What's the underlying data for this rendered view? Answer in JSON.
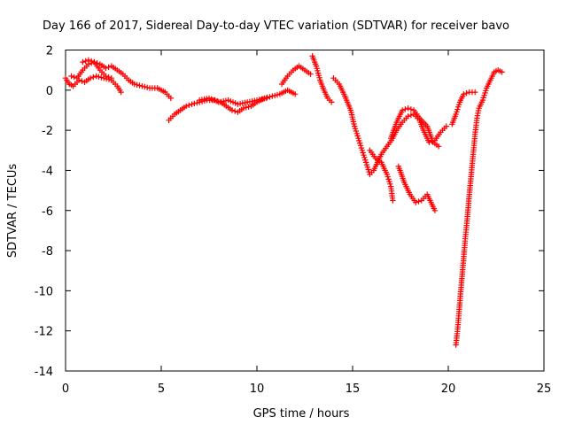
{
  "chart_data": {
    "type": "scatter",
    "title": "Day 166 of 2017, Sidereal Day-to-day VTEC variation (SDTVAR) for receiver bavo",
    "xlabel": "GPS time / hours",
    "ylabel": "SDTVAR / TECUs",
    "xlim": [
      0,
      25
    ],
    "ylim": [
      -14,
      2
    ],
    "xticks": [
      0,
      5,
      10,
      15,
      20,
      25
    ],
    "yticks": [
      2,
      0,
      -2,
      -4,
      -6,
      -8,
      -10,
      -12,
      -14
    ],
    "grid": false,
    "legend": "none",
    "marker": "+",
    "color": "#ff0000",
    "segments": [
      {
        "points": [
          [
            0.0,
            0.6
          ],
          [
            0.2,
            0.3
          ],
          [
            0.4,
            0.2
          ],
          [
            0.7,
            0.5
          ],
          [
            1.0,
            0.4
          ],
          [
            1.3,
            0.6
          ],
          [
            1.6,
            0.7
          ],
          [
            2.0,
            0.6
          ],
          [
            2.4,
            0.5
          ],
          [
            2.7,
            0.2
          ],
          [
            2.9,
            -0.1
          ]
        ]
      },
      {
        "points": [
          [
            0.3,
            0.7
          ],
          [
            0.6,
            0.6
          ],
          [
            0.9,
            1.0
          ],
          [
            1.2,
            1.3
          ],
          [
            1.5,
            1.4
          ],
          [
            1.8,
            1.3
          ],
          [
            2.1,
            1.1
          ],
          [
            2.4,
            1.2
          ],
          [
            2.7,
            1.0
          ],
          [
            3.0,
            0.8
          ],
          [
            3.3,
            0.5
          ],
          [
            3.6,
            0.3
          ],
          [
            4.0,
            0.2
          ],
          [
            4.4,
            0.1
          ],
          [
            4.8,
            0.1
          ],
          [
            5.2,
            -0.1
          ],
          [
            5.5,
            -0.4
          ]
        ]
      },
      {
        "points": [
          [
            0.9,
            1.4
          ],
          [
            1.2,
            1.5
          ],
          [
            1.5,
            1.4
          ],
          [
            1.8,
            1.0
          ],
          [
            2.1,
            0.7
          ],
          [
            2.4,
            0.6
          ]
        ]
      },
      {
        "points": [
          [
            5.4,
            -1.5
          ],
          [
            5.7,
            -1.2
          ],
          [
            6.0,
            -1.0
          ],
          [
            6.3,
            -0.8
          ],
          [
            6.6,
            -0.7
          ],
          [
            7.0,
            -0.6
          ],
          [
            7.4,
            -0.5
          ],
          [
            7.8,
            -0.5
          ],
          [
            8.1,
            -0.6
          ],
          [
            8.4,
            -0.8
          ],
          [
            8.7,
            -1.0
          ],
          [
            9.0,
            -1.1
          ],
          [
            9.3,
            -0.9
          ],
          [
            9.7,
            -0.8
          ],
          [
            10.0,
            -0.6
          ],
          [
            10.4,
            -0.4
          ],
          [
            10.8,
            -0.3
          ],
          [
            11.2,
            -0.2
          ],
          [
            11.6,
            0.0
          ],
          [
            12.0,
            -0.2
          ]
        ]
      },
      {
        "points": [
          [
            7.0,
            -0.5
          ],
          [
            7.5,
            -0.4
          ],
          [
            8.0,
            -0.6
          ],
          [
            8.5,
            -0.5
          ],
          [
            9.0,
            -0.7
          ],
          [
            9.5,
            -0.6
          ],
          [
            10.0,
            -0.5
          ],
          [
            10.5,
            -0.4
          ]
        ]
      },
      {
        "points": [
          [
            11.3,
            0.3
          ],
          [
            11.6,
            0.7
          ],
          [
            11.9,
            1.0
          ],
          [
            12.2,
            1.2
          ],
          [
            12.5,
            1.0
          ],
          [
            12.8,
            0.8
          ]
        ]
      },
      {
        "points": [
          [
            12.9,
            1.7
          ],
          [
            13.1,
            1.2
          ],
          [
            13.3,
            0.5
          ],
          [
            13.5,
            0.0
          ],
          [
            13.7,
            -0.4
          ],
          [
            13.9,
            -0.6
          ]
        ]
      },
      {
        "points": [
          [
            14.0,
            0.6
          ],
          [
            14.3,
            0.3
          ],
          [
            14.6,
            -0.3
          ],
          [
            14.9,
            -1.0
          ],
          [
            15.1,
            -1.8
          ],
          [
            15.3,
            -2.4
          ],
          [
            15.5,
            -3.0
          ],
          [
            15.7,
            -3.6
          ],
          [
            15.9,
            -4.2
          ],
          [
            16.1,
            -4.0
          ],
          [
            16.3,
            -3.6
          ],
          [
            16.5,
            -3.2
          ],
          [
            16.8,
            -2.8
          ],
          [
            17.1,
            -2.4
          ],
          [
            17.3,
            -2.0
          ],
          [
            17.6,
            -1.6
          ],
          [
            17.9,
            -1.3
          ],
          [
            18.2,
            -1.2
          ],
          [
            18.5,
            -1.5
          ],
          [
            18.7,
            -2.0
          ],
          [
            19.0,
            -2.6
          ],
          [
            19.3,
            -2.5
          ],
          [
            19.6,
            -2.1
          ],
          [
            19.9,
            -1.8
          ]
        ]
      },
      {
        "points": [
          [
            15.9,
            -3.0
          ],
          [
            16.2,
            -3.4
          ],
          [
            16.5,
            -3.6
          ],
          [
            16.8,
            -4.2
          ],
          [
            17.0,
            -4.8
          ],
          [
            17.1,
            -5.5
          ]
        ]
      },
      {
        "points": [
          [
            17.0,
            -2.4
          ],
          [
            17.3,
            -1.6
          ],
          [
            17.6,
            -1.0
          ],
          [
            17.9,
            -0.9
          ],
          [
            18.2,
            -1.0
          ],
          [
            18.5,
            -1.4
          ],
          [
            18.9,
            -1.8
          ],
          [
            19.2,
            -2.6
          ],
          [
            19.5,
            -2.8
          ]
        ]
      },
      {
        "points": [
          [
            17.4,
            -3.8
          ],
          [
            17.7,
            -4.6
          ],
          [
            18.0,
            -5.2
          ],
          [
            18.3,
            -5.6
          ],
          [
            18.6,
            -5.5
          ],
          [
            18.9,
            -5.2
          ],
          [
            19.1,
            -5.6
          ],
          [
            19.3,
            -6.0
          ]
        ]
      },
      {
        "points": [
          [
            20.4,
            -12.7
          ],
          [
            20.5,
            -11.8
          ],
          [
            20.6,
            -10.6
          ],
          [
            20.7,
            -9.5
          ],
          [
            20.8,
            -8.4
          ],
          [
            20.9,
            -7.3
          ],
          [
            21.0,
            -6.3
          ],
          [
            21.1,
            -5.2
          ],
          [
            21.2,
            -4.2
          ],
          [
            21.3,
            -3.2
          ],
          [
            21.4,
            -2.2
          ],
          [
            21.5,
            -1.4
          ],
          [
            21.6,
            -0.9
          ],
          [
            21.8,
            -0.5
          ],
          [
            22.0,
            0.1
          ],
          [
            22.2,
            0.5
          ],
          [
            22.4,
            0.9
          ],
          [
            22.6,
            1.0
          ],
          [
            22.8,
            0.9
          ]
        ]
      },
      {
        "points": [
          [
            20.2,
            -1.7
          ],
          [
            20.4,
            -1.2
          ],
          [
            20.6,
            -0.6
          ],
          [
            20.8,
            -0.2
          ],
          [
            21.1,
            -0.1
          ],
          [
            21.4,
            -0.1
          ]
        ]
      }
    ]
  }
}
